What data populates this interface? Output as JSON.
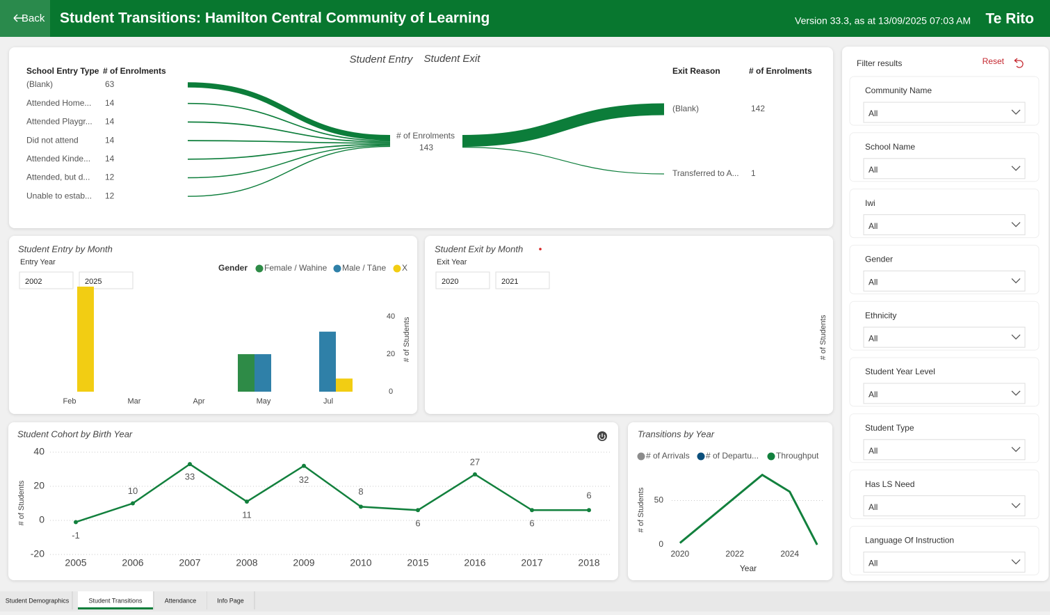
{
  "header": {
    "back": "Back",
    "title": "Student Transitions: Hamilton Central Community of Learning",
    "version": "Version 33.3, as at 13/09/2025 07:03 AM",
    "brand": "Te Rito"
  },
  "flow": {
    "tabs": [
      "Student Entry",
      "Student Exit"
    ],
    "entry_columns": [
      "School Entry Type",
      "# of Enrolments"
    ],
    "entry_rows": [
      {
        "label": "(Blank)",
        "value": 63
      },
      {
        "label": "Attended Home...",
        "value": 14
      },
      {
        "label": "Attended Playgr...",
        "value": 14
      },
      {
        "label": "Did not attend",
        "value": 14
      },
      {
        "label": "Attended Kinde...",
        "value": 14
      },
      {
        "label": "Attended, but d...",
        "value": 12
      },
      {
        "label": "Unable to estab...",
        "value": 12
      }
    ],
    "total_label": "# of Enrolments",
    "total": 143,
    "exit_columns": [
      "Exit Reason",
      "# of Enrolments"
    ],
    "exit_rows": [
      {
        "label": "(Blank)",
        "value": 142
      },
      {
        "label": "Transferred to A...",
        "value": 1
      }
    ]
  },
  "chart_data": [
    {
      "type": "bar",
      "title": "Student Entry by Month",
      "filter_label": "Entry Year",
      "filter_values": [
        "2002",
        "2025"
      ],
      "legend_title": "Gender",
      "categories": [
        "Feb",
        "Mar",
        "Apr",
        "May",
        "Jul"
      ],
      "series": [
        {
          "name": "Female / Wahine",
          "color": "#2e8b47",
          "values": [
            null,
            null,
            null,
            20,
            null
          ]
        },
        {
          "name": "Male / Tāne",
          "color": "#2f80a8",
          "values": [
            null,
            null,
            null,
            20,
            32
          ]
        },
        {
          "name": "X",
          "color": "#f2cd13",
          "values": [
            56,
            null,
            null,
            null,
            7
          ]
        }
      ],
      "ylim": [
        0,
        56
      ],
      "yticks": [
        0,
        20,
        40
      ],
      "y_label": "# of Students"
    },
    {
      "type": "bar",
      "title": "Student Exit by Month",
      "filter_label": "Exit Year",
      "filter_values": [
        "2020",
        "2021"
      ],
      "y_label": "# of Students"
    },
    {
      "type": "line",
      "title": "Student Cohort by Birth Year",
      "categories": [
        "2005",
        "2006",
        "2007",
        "2008",
        "2009",
        "2010",
        "2015",
        "2016",
        "2017",
        "2018"
      ],
      "values": [
        -1,
        10,
        33,
        11,
        32,
        8,
        6,
        27,
        6,
        6
      ],
      "color": "#12803d",
      "ylim": [
        -20,
        40
      ],
      "yticks": [
        -20,
        0,
        20,
        40
      ],
      "y_label": "# of Students",
      "grid": true
    },
    {
      "type": "line",
      "title": "Transitions by Year",
      "x": [
        2020,
        2023,
        2024,
        2025
      ],
      "series": [
        {
          "name": "# of Arrivals",
          "color": "#8c8c8c",
          "values": [
            null,
            null,
            null,
            null
          ]
        },
        {
          "name": "# of Departu...",
          "color": "#0b4f7c",
          "values": [
            null,
            null,
            null,
            null
          ]
        },
        {
          "name": "Throughput",
          "color": "#12803d",
          "values": [
            2,
            79,
            60,
            0
          ]
        }
      ],
      "xlim": [
        2019.7,
        2025.25
      ],
      "xticks": [
        2020,
        2022,
        2024
      ],
      "ylim": [
        0,
        85
      ],
      "yticks": [
        0,
        50
      ],
      "x_label": "Year",
      "y_label": "# of Students",
      "grid": true
    }
  ],
  "filters": {
    "title": "Filter results",
    "reset": "Reset",
    "items": [
      {
        "label": "Community Name",
        "value": "All"
      },
      {
        "label": "School Name",
        "value": "All"
      },
      {
        "label": "Iwi",
        "value": "All"
      },
      {
        "label": "Gender",
        "value": "All"
      },
      {
        "label": "Ethnicity",
        "value": "All"
      },
      {
        "label": "Student Year Level",
        "value": "All"
      },
      {
        "label": "Student Type",
        "value": "All"
      },
      {
        "label": "Has LS Need",
        "value": "All"
      },
      {
        "label": "Language Of Instruction",
        "value": "All"
      }
    ]
  },
  "tabs": {
    "items": [
      "Student Demographics",
      "Student Transitions",
      "Attendance",
      "Info Page"
    ],
    "active": 1
  }
}
